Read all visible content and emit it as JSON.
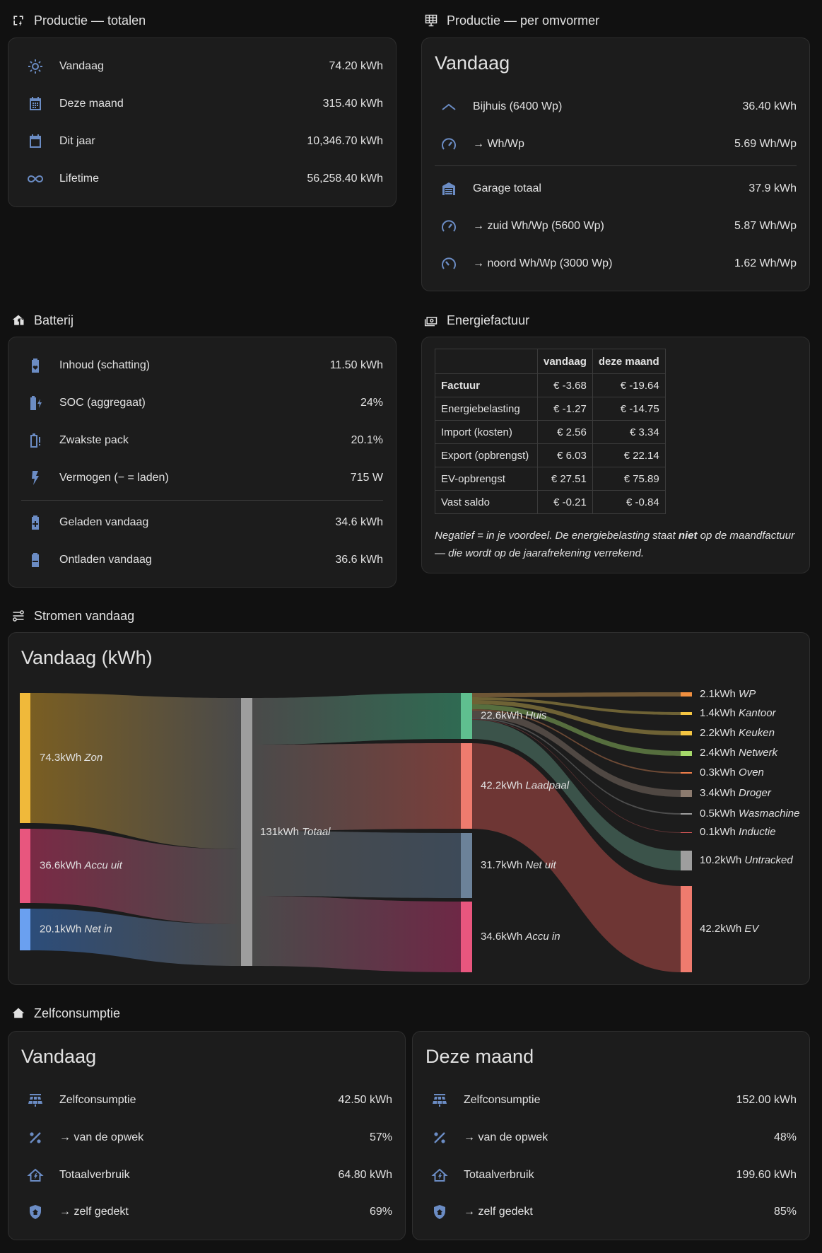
{
  "sections": {
    "production_totals": "Productie — totalen",
    "production_inverter": "Productie — per omvormer",
    "battery": "Batterij",
    "energy_bill": "Energiefactuur",
    "flows": "Stromen vandaag",
    "self_consumption": "Zelfconsumptie"
  },
  "production_totals": [
    {
      "label": "Vandaag",
      "value": "74.20 kWh",
      "icon": "sun-icon"
    },
    {
      "label": "Deze maand",
      "value": "315.40 kWh",
      "icon": "calendar-month-icon"
    },
    {
      "label": "Dit jaar",
      "value": "10,346.70 kWh",
      "icon": "calendar-icon"
    },
    {
      "label": "Lifetime",
      "value": "56,258.40 kWh",
      "icon": "infinity-icon"
    }
  ],
  "inverter": {
    "title": "Vandaag",
    "rows": [
      {
        "label": "Bijhuis (6400 Wp)",
        "value": "36.40 kWh",
        "icon": "roof-icon"
      },
      {
        "label": "→ Wh/Wp",
        "value": "5.69 Wh/Wp",
        "icon": "speedometer-icon"
      },
      {
        "label": "Garage totaal",
        "value": "37.9 kWh",
        "icon": "garage-icon"
      },
      {
        "label": "→ zuid Wh/Wp (5600 Wp)",
        "value": "5.87 Wh/Wp",
        "icon": "speedometer-icon"
      },
      {
        "label": "→ noord Wh/Wp (3000 Wp)",
        "value": "1.62 Wh/Wp",
        "icon": "speedometer-slow-icon"
      }
    ]
  },
  "battery": [
    {
      "label": "Inhoud (schatting)",
      "value": "11.50 kWh",
      "icon": "battery-heart-icon"
    },
    {
      "label": "SOC (aggregaat)",
      "value": "24%",
      "icon": "battery-charging-icon"
    },
    {
      "label": "Zwakste pack",
      "value": "20.1%",
      "icon": "battery-alert-icon"
    },
    {
      "label": "Vermogen (− = laden)",
      "value": "715 W",
      "icon": "lightning-icon"
    },
    {
      "label": "Geladen vandaag",
      "value": "34.6 kWh",
      "icon": "battery-plus-icon"
    },
    {
      "label": "Ontladen vandaag",
      "value": "36.6 kWh",
      "icon": "battery-minus-icon"
    }
  ],
  "bill": {
    "headers": [
      "",
      "vandaag",
      "deze maand"
    ],
    "rows": [
      {
        "label": "Factuur",
        "today": "€ -3.68",
        "month": "€ -19.64",
        "bold": true
      },
      {
        "label": "Energiebelasting",
        "today": "€ -1.27",
        "month": "€ -14.75"
      },
      {
        "label": "Import (kosten)",
        "today": "€ 2.56",
        "month": "€ 3.34"
      },
      {
        "label": "Export (opbrengst)",
        "today": "€ 6.03",
        "month": "€ 22.14"
      },
      {
        "label": "EV-opbrengst",
        "today": "€ 27.51",
        "month": "€ 75.89"
      },
      {
        "label": "Vast saldo",
        "today": "€ -0.21",
        "month": "€ -0.84"
      }
    ],
    "note_pre": "Negatief = in je voordeel. De energiebelasting staat ",
    "note_bold": "niet",
    "note_post": " op de maandfactuur — die wordt op de jaarafrekening verrekend."
  },
  "flows": {
    "title": "Vandaag (kWh)",
    "sources": [
      {
        "value": "74.3kWh",
        "name": "Zon",
        "color": "#f0b93a"
      },
      {
        "value": "36.6kWh",
        "name": "Accu uit",
        "color": "#e8567e"
      },
      {
        "value": "20.1kWh",
        "name": "Net in",
        "color": "#6aa0f0"
      }
    ],
    "total": {
      "value": "131kWh",
      "name": "Totaal",
      "color": "#9e9e9e"
    },
    "targets": [
      {
        "value": "22.6kWh",
        "name": "Huis",
        "color": "#5fbf8f"
      },
      {
        "value": "42.2kWh",
        "name": "Laadpaal",
        "color": "#ef7b6e"
      },
      {
        "value": "31.7kWh",
        "name": "Net uit",
        "color": "#6c8299"
      },
      {
        "value": "34.6kWh",
        "name": "Accu in",
        "color": "#e8567e"
      }
    ],
    "consumers": [
      {
        "value": "2.1kWh",
        "name": "WP",
        "color": "#f08f3f"
      },
      {
        "value": "1.4kWh",
        "name": "Kantoor",
        "color": "#f4c542"
      },
      {
        "value": "2.2kWh",
        "name": "Keuken",
        "color": "#f4c542"
      },
      {
        "value": "2.4kWh",
        "name": "Netwerk",
        "color": "#a6d96a"
      },
      {
        "value": "0.3kWh",
        "name": "Oven",
        "color": "#f07f4a"
      },
      {
        "value": "3.4kWh",
        "name": "Droger",
        "color": "#8c7b6f"
      },
      {
        "value": "0.5kWh",
        "name": "Wasmachine",
        "color": "#9e9e9e"
      },
      {
        "value": "0.1kWh",
        "name": "Inductie",
        "color": "#e05a5a"
      },
      {
        "value": "10.2kWh",
        "name": "Untracked",
        "color": "#9e9e9e"
      },
      {
        "value": "42.2kWh",
        "name": "EV",
        "color": "#ef7b6e"
      }
    ]
  },
  "self_consumption": [
    {
      "title": "Vandaag",
      "rows": [
        {
          "label": "Zelfconsumptie",
          "value": "42.50 kWh",
          "icon": "solar-panel-icon"
        },
        {
          "label": "→ van de opwek",
          "value": "57%",
          "icon": "percent-icon"
        },
        {
          "label": "Totaalverbruik",
          "value": "64.80 kWh",
          "icon": "home-lightning-icon"
        },
        {
          "label": "→ zelf gedekt",
          "value": "69%",
          "icon": "shield-home-icon"
        }
      ]
    },
    {
      "title": "Deze maand",
      "rows": [
        {
          "label": "Zelfconsumptie",
          "value": "152.00 kWh",
          "icon": "solar-panel-icon"
        },
        {
          "label": "→ van de opwek",
          "value": "48%",
          "icon": "percent-icon"
        },
        {
          "label": "Totaalverbruik",
          "value": "199.60 kWh",
          "icon": "home-lightning-icon"
        },
        {
          "label": "→ zelf gedekt",
          "value": "85%",
          "icon": "shield-home-icon"
        }
      ]
    }
  ]
}
